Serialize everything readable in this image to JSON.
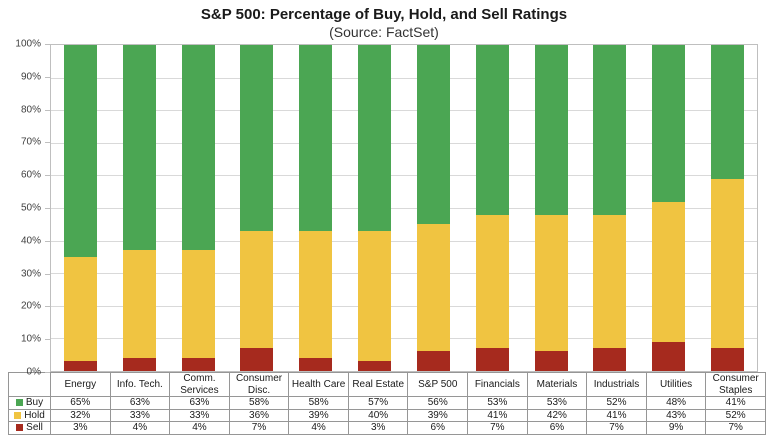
{
  "title": "S&P 500: Percentage of Buy, Hold, and Sell Ratings",
  "subtitle": "(Source: FactSet)",
  "colors": {
    "buy": "#4ba653",
    "hold": "#f0c441",
    "sell": "#a62a1e",
    "gridline": "#d9d9d9",
    "plot_border": "#bfbfbf",
    "table_border": "#969696"
  },
  "y_axis": {
    "tick_labels": [
      "100%",
      "90%",
      "80%",
      "70%",
      "60%",
      "50%",
      "40%",
      "30%",
      "20%",
      "10%",
      "0%"
    ],
    "min": 0,
    "max": 100,
    "step": 10
  },
  "chart_data": {
    "type": "bar",
    "stacked": true,
    "percent_stacked": true,
    "title": "S&P 500: Percentage of Buy, Hold, and Sell Ratings",
    "subtitle": "(Source: FactSet)",
    "categories": [
      "Energy",
      "Info. Tech.",
      "Comm. Services",
      "Consumer Disc.",
      "Health Care",
      "Real Estate",
      "S&P 500",
      "Financials",
      "Materials",
      "Industrials",
      "Utilities",
      "Consumer Staples"
    ],
    "series": [
      {
        "name": "Buy",
        "color_key": "buy",
        "values": [
          65,
          63,
          63,
          58,
          58,
          57,
          56,
          53,
          53,
          52,
          48,
          41
        ]
      },
      {
        "name": "Hold",
        "color_key": "hold",
        "values": [
          32,
          33,
          33,
          36,
          39,
          40,
          39,
          41,
          42,
          41,
          43,
          52
        ]
      },
      {
        "name": "Sell",
        "color_key": "sell",
        "values": [
          3,
          4,
          4,
          7,
          4,
          3,
          6,
          7,
          6,
          7,
          9,
          7
        ]
      }
    ],
    "value_suffix": "%",
    "ylim": [
      0,
      100
    ],
    "grid": true,
    "legend_position": "table-left"
  }
}
